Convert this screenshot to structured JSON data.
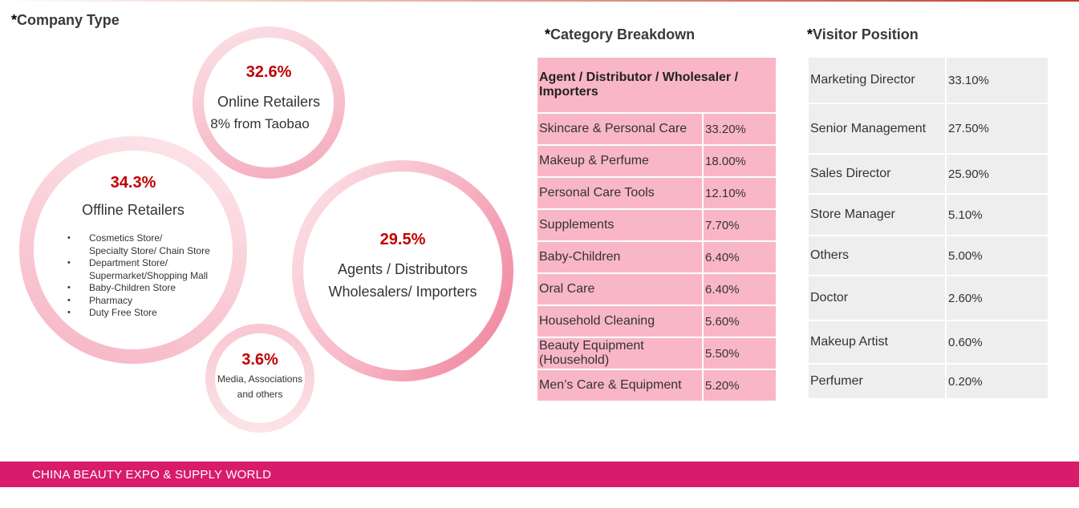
{
  "titles": {
    "company_type": "Company Type",
    "category": "Category Breakdown",
    "visitor": "Visitor Position",
    "asterisk": "*"
  },
  "colors": {
    "accent_red": "#c00000",
    "pink_cell": "#f9b6c7",
    "footer": "#d81b6a",
    "gray_cell": "#eeeeee"
  },
  "chart_data": [
    {
      "type": "bubble",
      "title": "Company Type",
      "items": [
        {
          "key": "online",
          "percent": "32.6%",
          "value": 32.6,
          "label": "Online Retailers",
          "sublabel": "8% from Taobao"
        },
        {
          "key": "offline",
          "percent": "34.3%",
          "value": 34.3,
          "label": "Offline Retailers",
          "bullets": [
            "Cosmetics Store/\nSpecialty Store/ Chain Store",
            "Department Store/\nSupermarket/Shopping Mall",
            "Baby-Children Store",
            "Pharmacy",
            "Duty Free Store"
          ]
        },
        {
          "key": "agents",
          "percent": "29.5%",
          "value": 29.5,
          "label_line1": "Agents / Distributors",
          "label_line2": "Wholesalers/ Importers"
        },
        {
          "key": "media",
          "percent": "3.6%",
          "value": 3.6,
          "label_line1": "Media, Associations",
          "label_line2": "and others"
        }
      ]
    },
    {
      "type": "table",
      "title": "Category Breakdown",
      "header": "Agent / Distributor / Wholesaler / Importers",
      "rows": [
        {
          "label": "Skincare & Personal Care",
          "value": "33.20%"
        },
        {
          "label": "Makeup & Perfume",
          "value": "18.00%"
        },
        {
          "label": "Personal Care Tools",
          "value": "12.10%"
        },
        {
          "label": "Supplements",
          "value": "7.70%"
        },
        {
          "label": "Baby-Children",
          "value": "6.40%"
        },
        {
          "label": "Oral Care",
          "value": "6.40%"
        },
        {
          "label": "Household Cleaning",
          "value": "5.60%"
        },
        {
          "label": "Beauty Equipment (Household)",
          "value": "5.50%"
        },
        {
          "label": "Men’s Care & Equipment",
          "value": "5.20%"
        }
      ]
    },
    {
      "type": "table",
      "title": "Visitor Position",
      "rows": [
        {
          "label": "Marketing Director",
          "value": "33.10%"
        },
        {
          "label": "Senior Management",
          "value": "27.50%"
        },
        {
          "label": "Sales Director",
          "value": "25.90%"
        },
        {
          "label": "Store Manager",
          "value": "5.10%"
        },
        {
          "label": "Others",
          "value": "5.00%"
        },
        {
          "label": "Doctor",
          "value": "2.60%"
        },
        {
          "label": "Makeup Artist",
          "value": "0.60%"
        },
        {
          "label": "Perfumer",
          "value": "0.20%"
        }
      ]
    }
  ],
  "footer": {
    "text": "CHINA BEAUTY EXPO & SUPPLY  WORLD"
  }
}
